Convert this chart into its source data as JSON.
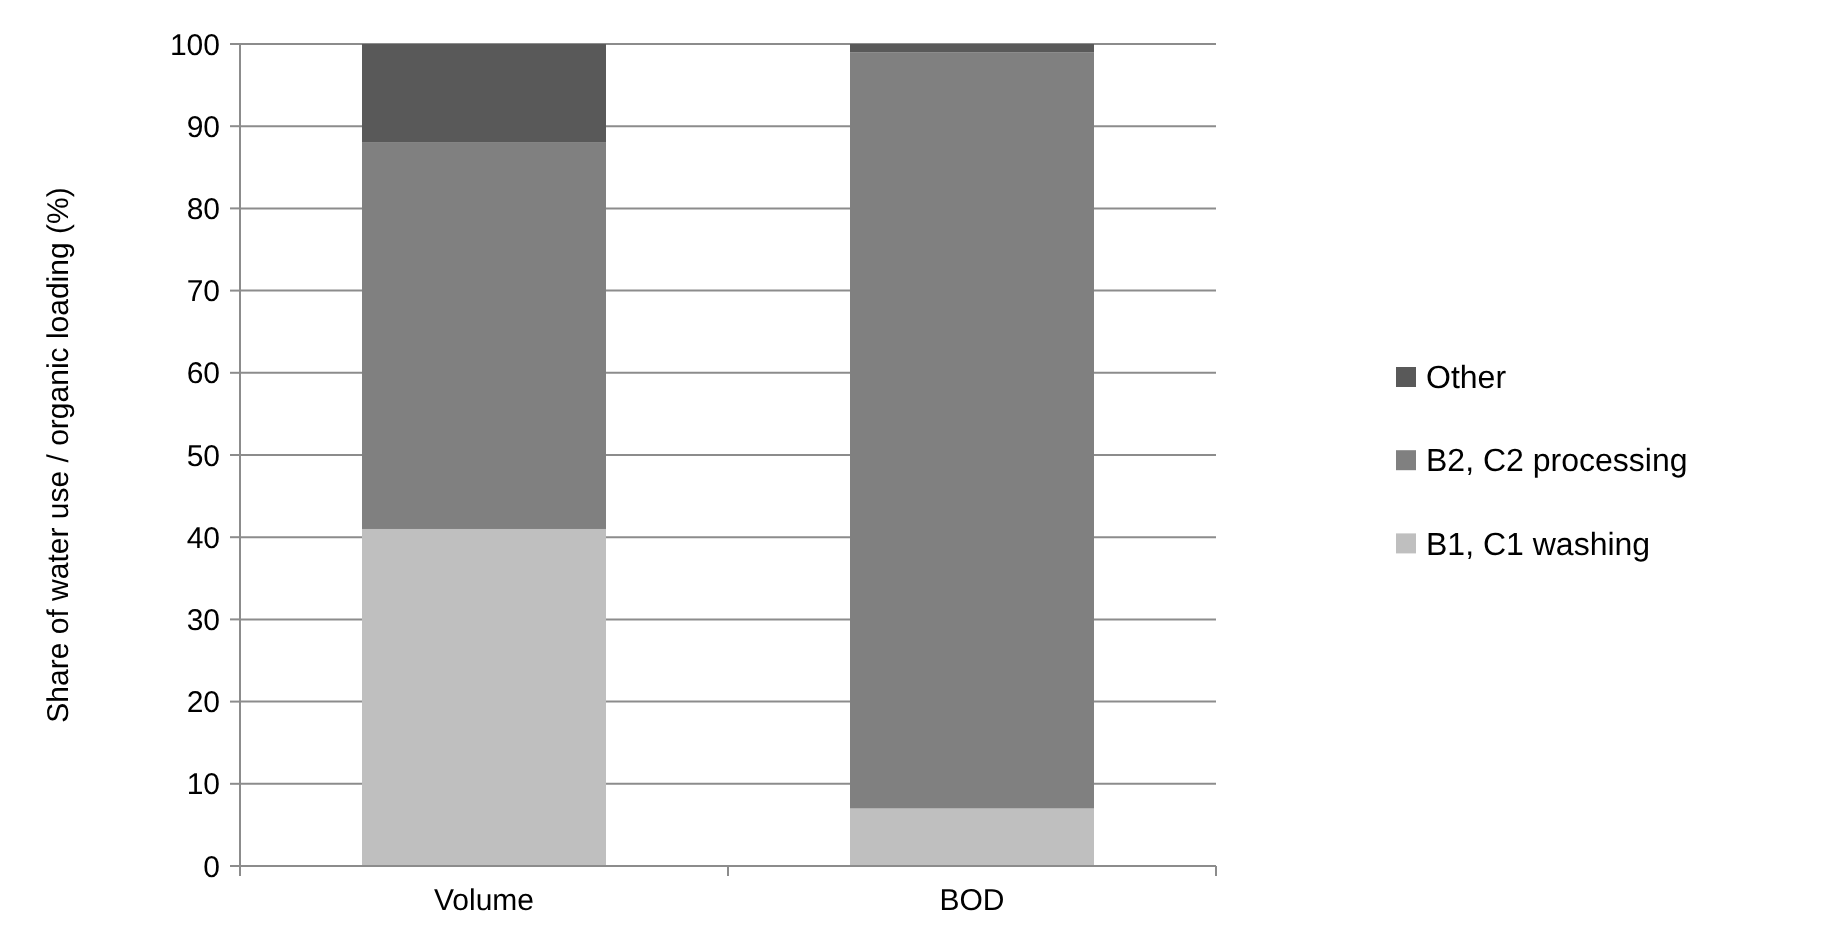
{
  "chart_data": {
    "type": "bar",
    "stacked": true,
    "ylabel": "Share of water use / organic loading (%)",
    "categories": [
      "Volume",
      "BOD"
    ],
    "series": [
      {
        "name": "B1, C1 washing",
        "color": "#bfbfbf",
        "values": [
          41,
          7
        ]
      },
      {
        "name": "B2, C2 processing",
        "color": "#808080",
        "values": [
          47,
          92
        ]
      },
      {
        "name": "Other",
        "color": "#595959",
        "values": [
          12,
          1
        ]
      }
    ],
    "ylim": [
      0,
      100
    ],
    "yticks": [
      0,
      10,
      20,
      30,
      40,
      50,
      60,
      70,
      80,
      90,
      100
    ],
    "grid": "y",
    "legend": "right"
  }
}
